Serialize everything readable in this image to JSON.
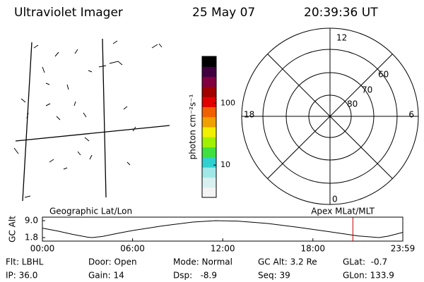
{
  "header": {
    "title": "Ultraviolet Imager",
    "date": "25 May 07",
    "time": "20:39:36 UT"
  },
  "colorbar": {
    "label": "photon cm⁻²s⁻¹",
    "log": true,
    "lim": [
      3,
      575
    ],
    "ticks": [
      10,
      100
    ],
    "colors": [
      "#f4f4f4",
      "#d8f0f0",
      "#a0e8e8",
      "#30d0d0",
      "#40e040",
      "#a0f000",
      "#f0f000",
      "#f0a000",
      "#f06000",
      "#e00000",
      "#a00000",
      "#800040",
      "#400040",
      "#000000"
    ]
  },
  "polar": {
    "mlt_labels": {
      "noon": "12",
      "dusk": "18",
      "dawn": "6",
      "midnight": "0"
    },
    "lat_labels": [
      "60",
      "70",
      "80"
    ]
  },
  "map": {
    "left_label": "Geographic Lat/Lon",
    "right_label": "Apex MLat/MLT"
  },
  "altitude": {
    "type": "line",
    "ylabel": "GC Alt",
    "ylim": [
      1.8,
      9.0
    ],
    "yticks": [
      {
        "value": 9.0,
        "label": "9.0"
      },
      1.8
    ],
    "xlim": [
      0,
      23.983
    ],
    "xticks": [
      {
        "value": 0,
        "label": "00:00"
      },
      {
        "value": 6,
        "label": "06:00"
      },
      {
        "value": 12,
        "label": "12:00"
      },
      {
        "value": 18,
        "label": "18:00"
      },
      {
        "value": 23.983,
        "label": "23:59"
      }
    ],
    "x": [
      0,
      1,
      2,
      3,
      3.3,
      4,
      5,
      6,
      8,
      10,
      11.5,
      13,
      15,
      17,
      19,
      21,
      22.4,
      23,
      23.983
    ],
    "values": [
      5.8,
      4.6,
      3.2,
      2.0,
      1.8,
      2.3,
      3.6,
      4.8,
      6.8,
      8.4,
      9.0,
      8.8,
      7.8,
      6.2,
      4.4,
      2.5,
      1.8,
      2.4,
      4.0
    ],
    "color": "#000000",
    "marker_hour": 20.66,
    "marker_color": "#c00000"
  },
  "status": [
    [
      "Flt: LBHL",
      "Door: Open",
      "Mode: Normal",
      "GC Alt: 3.2 Re",
      "GLat:  -0.7"
    ],
    [
      "IP: 36.0",
      "Gain: 14",
      "Dsp:   -8.9",
      "Seq: 39",
      "GLon: 133.9"
    ]
  ]
}
